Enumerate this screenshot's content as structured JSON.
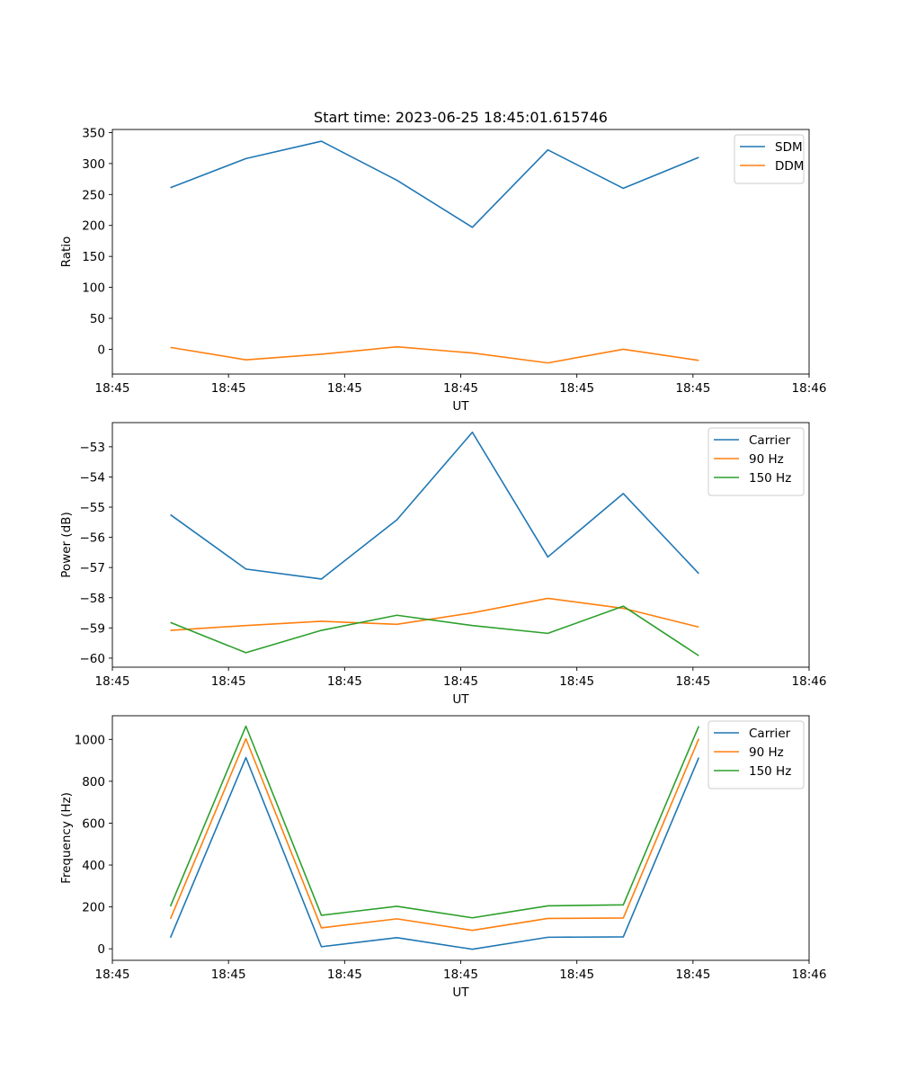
{
  "figure_title": "Start time: 2023-06-25 18:45:01.615746",
  "colors": {
    "blue": "#1f77b4",
    "orange": "#ff7f0e",
    "green": "#2ca02c",
    "legend_border": "#cccccc",
    "axes": "#000000"
  },
  "chart_data": [
    {
      "type": "line",
      "xlabel": "UT",
      "ylabel": "Ratio",
      "ylim": [
        -40,
        355
      ],
      "yticks": [
        0,
        50,
        100,
        150,
        200,
        250,
        300,
        350
      ],
      "xlim": [
        0,
        12
      ],
      "xticks": [
        0,
        2,
        4,
        6,
        8,
        10,
        12
      ],
      "xtick_labels": [
        "18:45",
        "18:45",
        "18:45",
        "18:45",
        "18:45",
        "18:45",
        "18:46"
      ],
      "x": [
        1,
        2.3,
        3.6,
        4.9,
        6.2,
        7.5,
        8.8,
        10.1
      ],
      "legend_loc": "top-right",
      "series": [
        {
          "name": "SDM",
          "color": "blue",
          "values": [
            261,
            308,
            336,
            273,
            197,
            322,
            260,
            310
          ]
        },
        {
          "name": "DDM",
          "color": "orange",
          "values": [
            3,
            -17,
            -8,
            4,
            -6,
            -22,
            0,
            -18
          ]
        }
      ]
    },
    {
      "type": "line",
      "xlabel": "UT",
      "ylabel": "Power (dB)",
      "ylim": [
        -60.3,
        -52.2
      ],
      "yticks": [
        -60,
        -59,
        -58,
        -57,
        -56,
        -55,
        -54,
        -53
      ],
      "xlim": [
        0,
        12
      ],
      "xticks": [
        0,
        2,
        4,
        6,
        8,
        10,
        12
      ],
      "xtick_labels": [
        "18:45",
        "18:45",
        "18:45",
        "18:45",
        "18:45",
        "18:45",
        "18:46"
      ],
      "x": [
        1,
        2.3,
        3.6,
        4.9,
        6.2,
        7.5,
        8.8,
        10.1
      ],
      "legend_loc": "top-right",
      "series": [
        {
          "name": "Carrier",
          "color": "blue",
          "values": [
            -55.25,
            -57.05,
            -57.38,
            -55.42,
            -52.52,
            -56.65,
            -54.55,
            -57.2
          ]
        },
        {
          "name": "90 Hz",
          "color": "orange",
          "values": [
            -59.08,
            -58.92,
            -58.78,
            -58.88,
            -58.5,
            -58.02,
            -58.35,
            -58.97
          ]
        },
        {
          "name": "150 Hz",
          "color": "green",
          "values": [
            -58.82,
            -59.82,
            -59.08,
            -58.58,
            -58.92,
            -59.18,
            -58.28,
            -59.92
          ]
        }
      ]
    },
    {
      "type": "line",
      "xlabel": "UT",
      "ylabel": "Frequency (Hz)",
      "ylim": [
        -55,
        1113
      ],
      "yticks": [
        0,
        200,
        400,
        600,
        800,
        1000
      ],
      "xlim": [
        0,
        12
      ],
      "xticks": [
        0,
        2,
        4,
        6,
        8,
        10,
        12
      ],
      "xtick_labels": [
        "18:45",
        "18:45",
        "18:45",
        "18:45",
        "18:45",
        "18:45",
        "18:46"
      ],
      "x": [
        1,
        2.3,
        3.6,
        4.9,
        6.2,
        7.5,
        8.8,
        10.1
      ],
      "legend_loc": "top-right",
      "series": [
        {
          "name": "Carrier",
          "color": "blue",
          "values": [
            53,
            913,
            10,
            53,
            -2,
            55,
            57,
            913
          ]
        },
        {
          "name": "90 Hz",
          "color": "orange",
          "values": [
            143,
            1003,
            100,
            143,
            88,
            145,
            147,
            1003
          ]
        },
        {
          "name": "150 Hz",
          "color": "green",
          "values": [
            203,
            1063,
            160,
            203,
            148,
            205,
            210,
            1063
          ]
        }
      ]
    }
  ]
}
